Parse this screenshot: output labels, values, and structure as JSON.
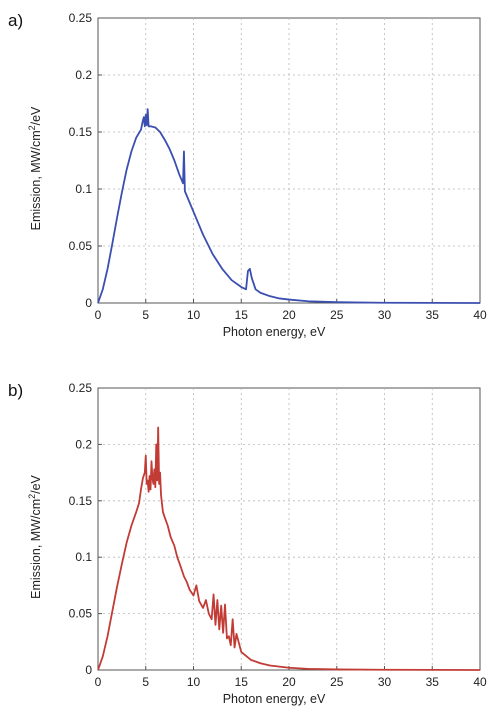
{
  "chart_data": [
    {
      "type": "line",
      "panel_label": "a)",
      "xlabel": "Photon energy, eV",
      "ylabel": "Emission, MW/cm2/eV",
      "ylabel_parts": [
        "Emission, MW/cm",
        "2",
        "/eV"
      ],
      "xlim": [
        0,
        40
      ],
      "ylim": [
        0,
        0.25
      ],
      "xticks": [
        "0",
        "5",
        "10",
        "15",
        "20",
        "25",
        "30",
        "35",
        "40"
      ],
      "yticks": [
        "0",
        "0.05",
        "0.1",
        "0.15",
        "0.2",
        "0.25"
      ],
      "grid": true,
      "color": "#3b4fb0",
      "series": [
        {
          "x": [
            0,
            0.5,
            1,
            1.5,
            2,
            2.5,
            3,
            3.5,
            4,
            4.5,
            4.7,
            4.8,
            4.9,
            5.0,
            5.1,
            5.2,
            5.3,
            5.5,
            6,
            6.5,
            7,
            7.5,
            8,
            8.5,
            8.9,
            9.0,
            9.1,
            9.5,
            10,
            11,
            12,
            13,
            14,
            15,
            15.5,
            15.7,
            15.9,
            16.1,
            16.5,
            17,
            18,
            19,
            20,
            22,
            25,
            30,
            35,
            40
          ],
          "values": [
            0.0,
            0.012,
            0.03,
            0.052,
            0.075,
            0.097,
            0.117,
            0.133,
            0.145,
            0.152,
            0.16,
            0.163,
            0.155,
            0.165,
            0.156,
            0.17,
            0.155,
            0.155,
            0.154,
            0.15,
            0.143,
            0.135,
            0.125,
            0.113,
            0.105,
            0.133,
            0.098,
            0.09,
            0.08,
            0.06,
            0.043,
            0.03,
            0.02,
            0.014,
            0.012,
            0.028,
            0.03,
            0.022,
            0.012,
            0.009,
            0.006,
            0.004,
            0.003,
            0.0015,
            0.0007,
            0.0002,
            0.0001,
            0.0
          ]
        }
      ]
    },
    {
      "type": "line",
      "panel_label": "b)",
      "xlabel": "Photon energy, eV",
      "ylabel": "Emission, MW/cm2/eV",
      "ylabel_parts": [
        "Emission, MW/cm",
        "2",
        "/eV"
      ],
      "xlim": [
        0,
        40
      ],
      "ylim": [
        0,
        0.25
      ],
      "xticks": [
        "0",
        "5",
        "10",
        "15",
        "20",
        "25",
        "30",
        "35",
        "40"
      ],
      "yticks": [
        "0",
        "0.05",
        "0.1",
        "0.15",
        "0.2",
        "0.25"
      ],
      "grid": true,
      "color": "#c23b35",
      "series": [
        {
          "x": [
            0,
            0.5,
            1,
            1.5,
            2,
            2.5,
            3,
            3.5,
            4,
            4.3,
            4.5,
            4.7,
            4.9,
            5.0,
            5.1,
            5.2,
            5.3,
            5.4,
            5.5,
            5.6,
            5.7,
            5.8,
            5.9,
            6.0,
            6.1,
            6.2,
            6.3,
            6.4,
            6.5,
            6.6,
            6.8,
            7.0,
            7.3,
            7.6,
            8.0,
            8.3,
            8.6,
            9.0,
            9.3,
            9.6,
            10.0,
            10.3,
            10.6,
            11.0,
            11.3,
            11.6,
            11.9,
            12.1,
            12.3,
            12.5,
            12.7,
            12.9,
            13.1,
            13.3,
            13.5,
            13.7,
            13.9,
            14.1,
            14.3,
            14.5,
            15,
            16,
            17,
            18,
            19,
            20,
            22,
            25,
            30,
            35,
            40
          ],
          "values": [
            0.0,
            0.012,
            0.03,
            0.052,
            0.074,
            0.094,
            0.113,
            0.128,
            0.14,
            0.148,
            0.16,
            0.17,
            0.175,
            0.19,
            0.165,
            0.168,
            0.158,
            0.172,
            0.16,
            0.185,
            0.17,
            0.165,
            0.178,
            0.162,
            0.2,
            0.168,
            0.215,
            0.165,
            0.175,
            0.155,
            0.14,
            0.135,
            0.128,
            0.118,
            0.11,
            0.1,
            0.093,
            0.083,
            0.078,
            0.071,
            0.066,
            0.075,
            0.061,
            0.055,
            0.062,
            0.05,
            0.045,
            0.067,
            0.04,
            0.062,
            0.036,
            0.057,
            0.033,
            0.058,
            0.028,
            0.03,
            0.022,
            0.045,
            0.02,
            0.032,
            0.016,
            0.009,
            0.006,
            0.004,
            0.003,
            0.002,
            0.001,
            0.0005,
            0.0002,
            0.0001,
            0.0
          ]
        }
      ]
    }
  ]
}
